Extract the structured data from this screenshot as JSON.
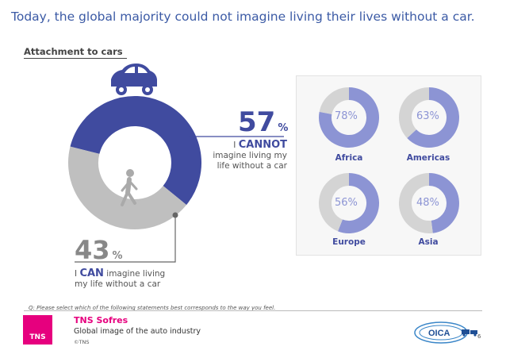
{
  "headline": "Today, the global majority could not imagine living their lives without a car.",
  "section_label": "Attachment to cars",
  "colors": {
    "accent": "#404b9f",
    "region_fill": "#8c94d4",
    "grey": "#bfbfbf",
    "light_grey": "#d4d4d4",
    "magenta": "#e6007e"
  },
  "icons": [
    "car-icon",
    "pedestrian-icon"
  ],
  "chart_data": [
    {
      "type": "pie",
      "categories": [
        "I CANNOT imagine living my life without a car",
        "I CAN imagine living my life without a car"
      ],
      "values": [
        57,
        43
      ],
      "unit": "%"
    },
    {
      "type": "pie",
      "regions": [
        {
          "name": "Africa",
          "value": 78
        },
        {
          "name": "Americas",
          "value": 63
        },
        {
          "name": "Europe",
          "value": 56
        },
        {
          "name": "Asia",
          "value": 48
        }
      ],
      "unit": "%"
    }
  ],
  "main": {
    "cannot_value": "57",
    "can_value": "43",
    "unit": "%",
    "cannot_strong": "CANNOT",
    "cannot_prefix": "I",
    "cannot_rest": "imagine living my life without a car",
    "can_prefix": "I",
    "can_strong": "CAN",
    "can_rest_1": "imagine living",
    "can_rest_2": "my life without a car"
  },
  "footer": {
    "question": "Q: Please select which of the following statements best corresponds to the way you feel.",
    "logo_text": "TNS",
    "brand": "TNS Sofres",
    "report_title": "Global image of the auto industry",
    "copyright": "©TNS",
    "oica_text": "OICA",
    "page_number": "6"
  }
}
